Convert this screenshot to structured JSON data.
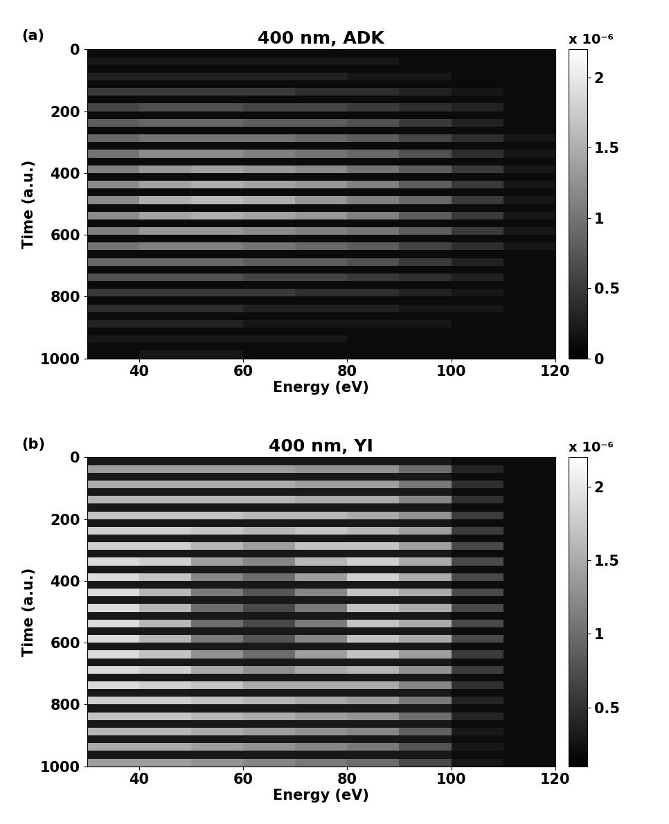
{
  "chart_data": [
    {
      "type": "heatmap",
      "panel_label": "(a)",
      "title": "400 nm, ADK",
      "x_label": "Energy (eV)",
      "y_label": "Time (a.u.)",
      "x": [
        30,
        40,
        50,
        60,
        70,
        80,
        90,
        100,
        110,
        120
      ],
      "y": [
        0,
        25,
        50,
        75,
        100,
        125,
        150,
        175,
        200,
        225,
        250,
        275,
        300,
        325,
        350,
        375,
        400,
        425,
        450,
        475,
        500,
        525,
        550,
        575,
        600,
        625,
        650,
        675,
        700,
        725,
        750,
        775,
        800,
        825,
        850,
        875,
        900,
        925,
        950,
        975,
        1000
      ],
      "xlim": [
        30,
        120
      ],
      "ylim": [
        1000,
        0
      ],
      "xticks": [
        40,
        60,
        80,
        100,
        120
      ],
      "yticks": [
        0,
        200,
        400,
        600,
        800,
        1000
      ],
      "cells": [
        [
          0.1,
          0.1,
          0.1,
          0.1,
          0.1,
          0.1,
          0.1,
          0.1,
          0.1
        ],
        [
          0.2,
          0.2,
          0.2,
          0.2,
          0.2,
          0.2,
          0.1,
          0.1,
          0.1
        ],
        [
          0.1,
          0.1,
          0.1,
          0.1,
          0.1,
          0.1,
          0.1,
          0.1,
          0.1
        ],
        [
          0.3,
          0.3,
          0.3,
          0.3,
          0.3,
          0.2,
          0.2,
          0.1,
          0.1
        ],
        [
          0.1,
          0.1,
          0.1,
          0.1,
          0.1,
          0.1,
          0.1,
          0.1,
          0.1
        ],
        [
          0.5,
          0.5,
          0.5,
          0.5,
          0.4,
          0.4,
          0.3,
          0.2,
          0.1
        ],
        [
          0.1,
          0.1,
          0.1,
          0.1,
          0.1,
          0.1,
          0.1,
          0.1,
          0.1
        ],
        [
          0.6,
          0.7,
          0.7,
          0.6,
          0.6,
          0.5,
          0.4,
          0.3,
          0.1
        ],
        [
          0.1,
          0.1,
          0.1,
          0.1,
          0.1,
          0.1,
          0.1,
          0.1,
          0.1
        ],
        [
          0.8,
          0.9,
          0.9,
          0.8,
          0.8,
          0.7,
          0.5,
          0.3,
          0.1
        ],
        [
          0.1,
          0.1,
          0.1,
          0.1,
          0.1,
          0.1,
          0.1,
          0.1,
          0.1
        ],
        [
          0.9,
          1.0,
          1.0,
          1.0,
          0.9,
          0.8,
          0.6,
          0.4,
          0.2
        ],
        [
          0.1,
          0.1,
          0.1,
          0.1,
          0.1,
          0.1,
          0.1,
          0.1,
          0.1
        ],
        [
          1.0,
          1.2,
          1.2,
          1.1,
          1.0,
          0.9,
          0.7,
          0.4,
          0.2
        ],
        [
          0.1,
          0.1,
          0.1,
          0.1,
          0.1,
          0.1,
          0.1,
          0.1,
          0.1
        ],
        [
          1.1,
          1.3,
          1.4,
          1.3,
          1.2,
          1.0,
          0.8,
          0.5,
          0.2
        ],
        [
          0.1,
          0.1,
          0.1,
          0.1,
          0.1,
          0.1,
          0.1,
          0.1,
          0.1
        ],
        [
          1.2,
          1.4,
          1.5,
          1.4,
          1.3,
          1.1,
          0.8,
          0.5,
          0.2
        ],
        [
          0.1,
          0.1,
          0.1,
          0.1,
          0.1,
          0.1,
          0.1,
          0.1,
          0.1
        ],
        [
          1.2,
          1.5,
          1.6,
          1.5,
          1.3,
          1.1,
          0.9,
          0.5,
          0.2
        ],
        [
          0.1,
          0.1,
          0.1,
          0.1,
          0.1,
          0.1,
          0.1,
          0.1,
          0.1
        ],
        [
          1.2,
          1.4,
          1.5,
          1.4,
          1.3,
          1.1,
          0.8,
          0.5,
          0.2
        ],
        [
          0.1,
          0.1,
          0.1,
          0.1,
          0.1,
          0.1,
          0.1,
          0.1,
          0.1
        ],
        [
          1.1,
          1.3,
          1.3,
          1.2,
          1.1,
          1.0,
          0.8,
          0.5,
          0.2
        ],
        [
          0.1,
          0.1,
          0.1,
          0.1,
          0.1,
          0.1,
          0.1,
          0.1,
          0.1
        ],
        [
          1.0,
          1.1,
          1.1,
          1.0,
          0.9,
          0.8,
          0.6,
          0.4,
          0.2
        ],
        [
          0.1,
          0.1,
          0.1,
          0.1,
          0.1,
          0.1,
          0.1,
          0.1,
          0.1
        ],
        [
          0.9,
          0.9,
          0.9,
          0.8,
          0.8,
          0.7,
          0.5,
          0.3,
          0.1
        ],
        [
          0.1,
          0.1,
          0.1,
          0.1,
          0.1,
          0.1,
          0.1,
          0.1,
          0.1
        ],
        [
          0.7,
          0.7,
          0.7,
          0.6,
          0.6,
          0.5,
          0.4,
          0.3,
          0.1
        ],
        [
          0.1,
          0.1,
          0.1,
          0.1,
          0.1,
          0.1,
          0.1,
          0.1,
          0.1
        ],
        [
          0.5,
          0.5,
          0.5,
          0.5,
          0.4,
          0.4,
          0.3,
          0.2,
          0.1
        ],
        [
          0.1,
          0.1,
          0.1,
          0.1,
          0.1,
          0.1,
          0.1,
          0.1,
          0.1
        ],
        [
          0.4,
          0.4,
          0.4,
          0.3,
          0.3,
          0.3,
          0.2,
          0.2,
          0.1
        ],
        [
          0.1,
          0.1,
          0.1,
          0.1,
          0.1,
          0.1,
          0.1,
          0.1,
          0.1
        ],
        [
          0.3,
          0.3,
          0.3,
          0.2,
          0.2,
          0.2,
          0.2,
          0.1,
          0.1
        ],
        [
          0.1,
          0.1,
          0.1,
          0.1,
          0.1,
          0.1,
          0.1,
          0.1,
          0.1
        ],
        [
          0.2,
          0.2,
          0.2,
          0.2,
          0.2,
          0.1,
          0.1,
          0.1,
          0.1
        ],
        [
          0.1,
          0.1,
          0.1,
          0.1,
          0.1,
          0.1,
          0.1,
          0.1,
          0.1
        ],
        [
          0.1,
          0.2,
          0.2,
          0.1,
          0.1,
          0.1,
          0.1,
          0.1,
          0.1
        ]
      ],
      "colorbar": {
        "range": [
          0,
          2.2
        ],
        "ticks": [
          0,
          0.5,
          1,
          1.5,
          2
        ],
        "label": "x 10⁻⁶"
      }
    },
    {
      "type": "heatmap",
      "panel_label": "(b)",
      "title": "400 nm, YI",
      "x_label": "Energy (eV)",
      "y_label": "Time (a.u.)",
      "x": [
        30,
        40,
        50,
        60,
        70,
        80,
        90,
        100,
        110,
        120
      ],
      "y": [
        0,
        25,
        50,
        75,
        100,
        125,
        150,
        175,
        200,
        225,
        250,
        275,
        300,
        325,
        350,
        375,
        400,
        425,
        450,
        475,
        500,
        525,
        550,
        575,
        600,
        625,
        650,
        675,
        700,
        725,
        750,
        775,
        800,
        825,
        850,
        875,
        900,
        925,
        950,
        975,
        1000
      ],
      "xlim": [
        30,
        120
      ],
      "ylim": [
        1000,
        0
      ],
      "xticks": [
        40,
        60,
        80,
        100,
        120
      ],
      "yticks": [
        0,
        200,
        400,
        600,
        800,
        1000
      ],
      "cells": [
        [
          0.3,
          0.3,
          0.3,
          0.3,
          0.3,
          0.3,
          0.3,
          0.2,
          0.2
        ],
        [
          1.4,
          1.4,
          1.4,
          1.4,
          1.3,
          1.3,
          1.0,
          0.4,
          0.2
        ],
        [
          0.3,
          0.3,
          0.3,
          0.3,
          0.3,
          0.3,
          0.3,
          0.2,
          0.2
        ],
        [
          1.5,
          1.5,
          1.5,
          1.5,
          1.4,
          1.4,
          1.1,
          0.5,
          0.2
        ],
        [
          0.3,
          0.3,
          0.3,
          0.3,
          0.3,
          0.3,
          0.3,
          0.2,
          0.2
        ],
        [
          1.6,
          1.6,
          1.6,
          1.6,
          1.5,
          1.5,
          1.2,
          0.5,
          0.2
        ],
        [
          0.3,
          0.3,
          0.3,
          0.3,
          0.3,
          0.3,
          0.3,
          0.2,
          0.2
        ],
        [
          1.7,
          1.7,
          1.7,
          1.6,
          1.6,
          1.5,
          1.3,
          0.6,
          0.2
        ],
        [
          0.3,
          0.3,
          0.3,
          0.3,
          0.3,
          0.3,
          0.3,
          0.2,
          0.2
        ],
        [
          1.8,
          1.8,
          1.7,
          1.6,
          1.7,
          1.6,
          1.4,
          0.6,
          0.2
        ],
        [
          0.3,
          0.3,
          0.3,
          0.3,
          0.3,
          0.3,
          0.3,
          0.2,
          0.2
        ],
        [
          1.8,
          1.8,
          1.6,
          1.4,
          1.7,
          1.7,
          1.4,
          0.7,
          0.2
        ],
        [
          0.3,
          0.3,
          0.3,
          0.3,
          0.3,
          0.3,
          0.3,
          0.2,
          0.2
        ],
        [
          1.9,
          1.8,
          1.4,
          1.2,
          1.6,
          1.8,
          1.5,
          0.7,
          0.2
        ],
        [
          0.3,
          0.3,
          0.3,
          0.3,
          0.3,
          0.3,
          0.3,
          0.2,
          0.2
        ],
        [
          1.9,
          1.7,
          1.2,
          1.0,
          1.4,
          1.8,
          1.5,
          0.7,
          0.2
        ],
        [
          0.3,
          0.3,
          0.3,
          0.3,
          0.3,
          0.3,
          0.3,
          0.2,
          0.2
        ],
        [
          1.9,
          1.6,
          1.1,
          0.8,
          1.2,
          1.7,
          1.5,
          0.7,
          0.2
        ],
        [
          0.3,
          0.3,
          0.3,
          0.3,
          0.3,
          0.3,
          0.3,
          0.2,
          0.2
        ],
        [
          1.9,
          1.6,
          1.0,
          0.7,
          1.1,
          1.7,
          1.5,
          0.7,
          0.2
        ],
        [
          0.3,
          0.3,
          0.3,
          0.3,
          0.3,
          0.3,
          0.3,
          0.2,
          0.2
        ],
        [
          1.9,
          1.6,
          1.0,
          0.7,
          1.1,
          1.7,
          1.5,
          0.7,
          0.2
        ],
        [
          0.3,
          0.3,
          0.3,
          0.3,
          0.3,
          0.3,
          0.3,
          0.2,
          0.2
        ],
        [
          1.9,
          1.6,
          1.1,
          0.8,
          1.2,
          1.7,
          1.5,
          0.7,
          0.2
        ],
        [
          0.3,
          0.3,
          0.3,
          0.3,
          0.3,
          0.3,
          0.3,
          0.2,
          0.2
        ],
        [
          1.9,
          1.7,
          1.3,
          1.0,
          1.4,
          1.7,
          1.4,
          0.6,
          0.2
        ],
        [
          0.3,
          0.3,
          0.3,
          0.3,
          0.3,
          0.3,
          0.3,
          0.2,
          0.2
        ],
        [
          1.9,
          1.8,
          1.5,
          1.3,
          1.5,
          1.6,
          1.3,
          0.6,
          0.2
        ],
        [
          0.3,
          0.3,
          0.3,
          0.3,
          0.3,
          0.3,
          0.3,
          0.2,
          0.2
        ],
        [
          1.9,
          1.8,
          1.7,
          1.5,
          1.5,
          1.5,
          1.2,
          0.5,
          0.2
        ],
        [
          0.3,
          0.3,
          0.3,
          0.3,
          0.3,
          0.3,
          0.3,
          0.2,
          0.2
        ],
        [
          1.8,
          1.8,
          1.7,
          1.6,
          1.5,
          1.4,
          1.1,
          0.4,
          0.2
        ],
        [
          0.3,
          0.3,
          0.3,
          0.3,
          0.3,
          0.3,
          0.3,
          0.2,
          0.2
        ],
        [
          1.7,
          1.7,
          1.6,
          1.5,
          1.4,
          1.3,
          1.0,
          0.4,
          0.2
        ],
        [
          0.3,
          0.3,
          0.3,
          0.3,
          0.3,
          0.3,
          0.3,
          0.2,
          0.2
        ],
        [
          1.6,
          1.6,
          1.5,
          1.4,
          1.3,
          1.2,
          0.9,
          0.3,
          0.2
        ],
        [
          0.3,
          0.3,
          0.3,
          0.3,
          0.3,
          0.3,
          0.3,
          0.2,
          0.2
        ],
        [
          1.5,
          1.5,
          1.4,
          1.3,
          1.2,
          1.1,
          0.8,
          0.3,
          0.2
        ],
        [
          0.3,
          0.3,
          0.3,
          0.3,
          0.3,
          0.3,
          0.3,
          0.2,
          0.2
        ],
        [
          1.4,
          1.4,
          1.3,
          1.2,
          1.1,
          1.0,
          0.7,
          0.3,
          0.2
        ]
      ],
      "colorbar": {
        "range": [
          0.1,
          2.2
        ],
        "ticks": [
          0.5,
          1,
          1.5,
          2
        ],
        "label": "x 10⁻⁶"
      }
    }
  ]
}
